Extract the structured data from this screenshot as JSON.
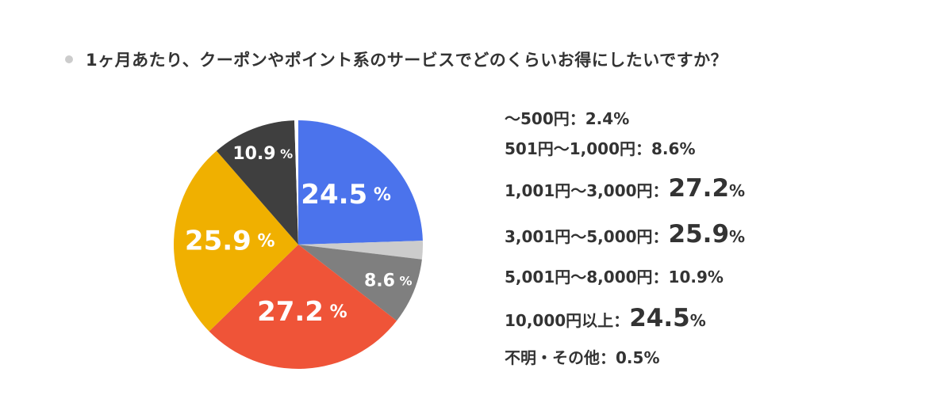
{
  "title": "1ヶ月あたり、クーポンやポイント系のサービスでどのくらいお得にしたいですか？",
  "chart_data": {
    "type": "pie",
    "title": "1ヶ月あたり、クーポンやポイント系のサービスでどのくらいお得にしたいですか？",
    "start": "top",
    "direction": "clockwise",
    "slices": [
      {
        "label": "10,000円以上",
        "value": 24.5,
        "color": "#4b73ec",
        "display": "24.5",
        "highlight": true,
        "show_on_pie": true
      },
      {
        "label": "〜500円",
        "value": 2.4,
        "color": "#cccccc",
        "display": "2.4",
        "highlight": false,
        "show_on_pie": false
      },
      {
        "label": "501円〜1,000円",
        "value": 8.6,
        "color": "#7f7f7f",
        "display": "8.6",
        "highlight": false,
        "show_on_pie": true
      },
      {
        "label": "1,001円〜3,000円",
        "value": 27.2,
        "color": "#ef5438",
        "display": "27.2",
        "highlight": true,
        "show_on_pie": true
      },
      {
        "label": "3,001円〜5,000円",
        "value": 25.9,
        "color": "#f0b000",
        "display": "25.9",
        "highlight": true,
        "show_on_pie": true
      },
      {
        "label": "5,001円〜8,000円",
        "value": 10.9,
        "color": "#3f3f3f",
        "display": "10.9",
        "highlight": false,
        "show_on_pie": true
      },
      {
        "label": "不明・その他",
        "value": 0.5,
        "color": "#ffffff",
        "display": "0.5",
        "highlight": false,
        "show_on_pie": false
      }
    ],
    "legend": [
      {
        "label": "〜500円",
        "value": "2.4",
        "big": false
      },
      {
        "label": "501円〜1,000円",
        "value": "8.6",
        "big": false
      },
      {
        "label": "1,001円〜3,000円",
        "value": "27.2",
        "big": true
      },
      {
        "label": "3,001円〜5,000円",
        "value": "25.9",
        "big": true
      },
      {
        "label": "5,001円〜8,000円",
        "value": "10.9",
        "big": false
      },
      {
        "label": "10,000円以上",
        "value": "24.5",
        "big": true
      },
      {
        "label": "不明・その他",
        "value": "0.5",
        "big": false
      }
    ],
    "separator": "：",
    "unit": "%",
    "legend_placement": "right"
  }
}
